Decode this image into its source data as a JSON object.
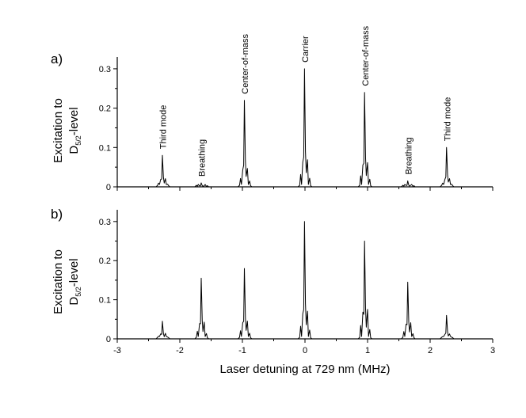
{
  "chart_data": [
    {
      "type": "line",
      "panel_label": "a)",
      "ylabel": "Excitation to",
      "ylabel_line2_main": "D",
      "ylabel_line2_sub": "5/2",
      "ylabel_line2_suffix": "-level",
      "xlim": [
        -3,
        3
      ],
      "ylim": [
        0,
        0.33
      ],
      "xticks": [
        -3,
        -2,
        -1,
        0,
        1,
        2,
        3
      ],
      "yticks": [
        0,
        0.1,
        0.2,
        0.3
      ],
      "ytick_labels": [
        "0",
        "0.1",
        "0.2",
        "0.3"
      ],
      "show_x_tick_labels": false,
      "grid": false,
      "peaks": [
        {
          "x": -2.27,
          "y": 0.08,
          "label": "Third mode"
        },
        {
          "x": -1.65,
          "y": 0.01,
          "label": "Breathing"
        },
        {
          "x": -0.96,
          "y": 0.22,
          "label": "Center-of-mass"
        },
        {
          "x": 0.0,
          "y": 0.3,
          "label": "Carrier"
        },
        {
          "x": 0.96,
          "y": 0.24,
          "label": "Center-of-mass"
        },
        {
          "x": 1.65,
          "y": 0.015,
          "label": "Breathing"
        },
        {
          "x": 2.27,
          "y": 0.1,
          "label": "Third mode"
        }
      ]
    },
    {
      "type": "line",
      "panel_label": "b)",
      "ylabel": "Excitation to",
      "ylabel_line2_main": "D",
      "ylabel_line2_sub": "5/2",
      "ylabel_line2_suffix": "-level",
      "xlabel": "Laser detuning at 729 nm (MHz)",
      "xlim": [
        -3,
        3
      ],
      "ylim": [
        0,
        0.33
      ],
      "xticks": [
        -3,
        -2,
        -1,
        0,
        1,
        2,
        3
      ],
      "xtick_labels": [
        "-3",
        "-2",
        "-1",
        "0",
        "1",
        "2",
        "3"
      ],
      "yticks": [
        0,
        0.1,
        0.2,
        0.3
      ],
      "ytick_labels": [
        "0",
        "0.1",
        "0.2",
        "0.3"
      ],
      "show_x_tick_labels": true,
      "grid": false,
      "peaks": [
        {
          "x": -2.27,
          "y": 0.045
        },
        {
          "x": -1.65,
          "y": 0.155
        },
        {
          "x": -0.96,
          "y": 0.18
        },
        {
          "x": 0.0,
          "y": 0.3
        },
        {
          "x": 0.96,
          "y": 0.25
        },
        {
          "x": 1.65,
          "y": 0.145
        },
        {
          "x": 2.27,
          "y": 0.06
        }
      ]
    }
  ]
}
